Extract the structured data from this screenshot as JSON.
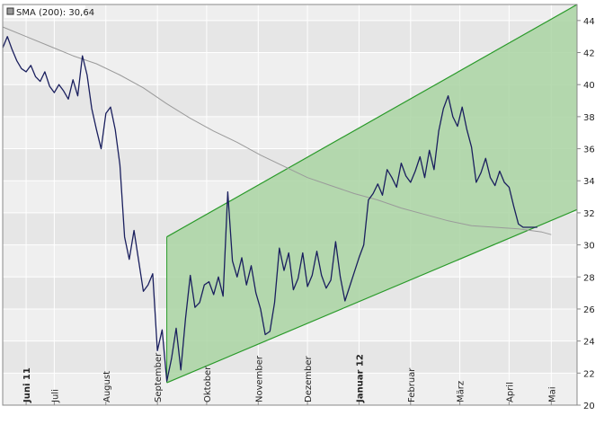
{
  "legend": {
    "sma_label": "SMA (200): 30,64"
  },
  "colors": {
    "band_fill": "#a9d3a2",
    "band_line": "#2a9a2a",
    "price_line": "#1a1f5e",
    "sma_line": "#9a9a9a",
    "plot_bg": "#eeeeee",
    "grid_line": "#ffffff"
  },
  "chart_data": {
    "type": "line",
    "title": "",
    "xlabel": "",
    "ylabel": "",
    "ylim": [
      20,
      45
    ],
    "y_ticks": [
      20,
      22,
      24,
      26,
      28,
      30,
      32,
      34,
      36,
      38,
      40,
      42,
      44
    ],
    "x_ticks": [
      {
        "label": "Juni 11",
        "index": 10,
        "bold": true
      },
      {
        "label": "Juli",
        "index": 22,
        "bold": false
      },
      {
        "label": "August",
        "index": 44,
        "bold": false
      },
      {
        "label": "September",
        "index": 66,
        "bold": false
      },
      {
        "label": "Oktober",
        "index": 87,
        "bold": false
      },
      {
        "label": "November",
        "index": 109,
        "bold": false
      },
      {
        "label": "Dezember",
        "index": 130,
        "bold": false
      },
      {
        "label": "Januar 12",
        "index": 152,
        "bold": true
      },
      {
        "label": "Februar",
        "index": 174,
        "bold": false
      },
      {
        "label": "März",
        "index": 195,
        "bold": false
      },
      {
        "label": "April",
        "index": 216,
        "bold": false
      },
      {
        "label": "Mai",
        "index": 234,
        "bold": false
      }
    ],
    "x_last_index": 245,
    "series": [
      {
        "name": "",
        "kind": "price",
        "x": [
          0,
          2,
          4,
          6,
          8,
          10,
          12,
          14,
          16,
          18,
          20,
          22,
          24,
          26,
          28,
          30,
          32,
          34,
          36,
          38,
          40,
          42,
          44,
          46,
          48,
          50,
          52,
          54,
          56,
          58,
          60,
          62,
          64,
          66,
          68,
          70,
          72,
          74,
          76,
          78,
          80,
          82,
          84,
          86,
          88,
          90,
          92,
          94,
          96,
          98,
          100,
          102,
          104,
          106,
          108,
          110,
          112,
          114,
          116,
          118,
          120,
          122,
          124,
          126,
          128,
          130,
          132,
          134,
          136,
          138,
          140,
          142,
          144,
          146,
          148,
          150,
          152,
          154,
          156,
          158,
          160,
          162,
          164,
          166,
          168,
          170,
          172,
          174,
          176,
          178,
          180,
          182,
          184,
          186,
          188,
          190,
          192,
          194,
          196,
          198,
          200,
          202,
          204,
          206,
          208,
          210,
          212,
          214,
          216,
          218,
          220,
          222,
          224,
          226,
          228
        ],
        "y": [
          42.3,
          43.0,
          42.2,
          41.5,
          41.0,
          40.8,
          41.2,
          40.5,
          40.2,
          40.8,
          39.9,
          39.5,
          40.0,
          39.6,
          39.1,
          40.3,
          39.3,
          41.8,
          40.6,
          38.5,
          37.2,
          36.0,
          38.2,
          38.6,
          37.2,
          35.0,
          30.5,
          29.1,
          30.9,
          29.0,
          27.1,
          27.5,
          28.2,
          23.4,
          24.7,
          21.5,
          22.9,
          24.8,
          22.2,
          25.4,
          28.1,
          26.1,
          26.4,
          27.5,
          27.7,
          26.9,
          28.0,
          26.8,
          33.3,
          29.0,
          28.0,
          29.2,
          27.5,
          28.7,
          27.0,
          26.0,
          24.4,
          24.6,
          26.4,
          29.8,
          28.4,
          29.5,
          27.2,
          27.9,
          29.5,
          27.4,
          28.1,
          29.6,
          28.1,
          27.3,
          27.8,
          30.2,
          28.0,
          26.5,
          27.4,
          28.3,
          29.2,
          30.0,
          32.8,
          33.2,
          33.8,
          33.1,
          34.7,
          34.2,
          33.6,
          35.1,
          34.3,
          33.9,
          34.6,
          35.5,
          34.2,
          35.9,
          34.7,
          37.1,
          38.5,
          39.3,
          38.0,
          37.4,
          38.6,
          37.2,
          36.1,
          33.9,
          34.5,
          35.4,
          34.2,
          33.7,
          34.6,
          33.9,
          33.6,
          32.4,
          31.3,
          31.1,
          31.1,
          31.1,
          31.1
        ]
      },
      {
        "name": "SMA (200)",
        "kind": "sma",
        "x": [
          0,
          10,
          20,
          30,
          40,
          50,
          60,
          70,
          80,
          90,
          100,
          110,
          120,
          130,
          140,
          150,
          160,
          170,
          180,
          190,
          200,
          210,
          220,
          230,
          234
        ],
        "y": [
          43.6,
          43.0,
          42.4,
          41.8,
          41.3,
          40.6,
          39.8,
          38.8,
          37.9,
          37.1,
          36.4,
          35.6,
          34.9,
          34.2,
          33.7,
          33.2,
          32.8,
          32.3,
          31.9,
          31.5,
          31.2,
          31.1,
          31.0,
          30.8,
          30.64
        ]
      }
    ],
    "channel": {
      "x_start": 70,
      "x_end": 245,
      "upper": [
        30.5,
        45.0
      ],
      "lower": [
        21.4,
        32.2
      ]
    }
  }
}
